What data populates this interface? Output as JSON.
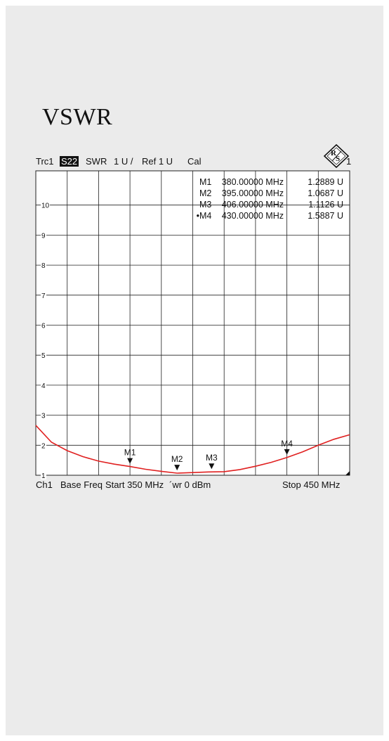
{
  "title": "VSWR",
  "header": {
    "trace": "Trc1",
    "param": "S22",
    "format": "SWR",
    "scale": "1 U /",
    "ref": "Ref 1 U",
    "cal": "Cal",
    "trace_number": "1"
  },
  "footer": {
    "channel": "Ch1",
    "base": "Base Freq",
    "start": "Start 350 MHz",
    "power": "´wr   0 dBm",
    "stop": "Stop  450 MHz"
  },
  "colors": {
    "trace": "#e02020",
    "grid": "#222222",
    "panel": "#ebebeb"
  },
  "chart_data": {
    "type": "line",
    "xlim": [
      350,
      450
    ],
    "ylim": [
      1,
      11
    ],
    "x_unit": "MHz",
    "y_unit": "U",
    "y_ticks": [
      "1",
      "2",
      "3",
      "4",
      "5",
      "6",
      "7",
      "8",
      "9",
      "10"
    ],
    "grid": true,
    "series": [
      {
        "x": [
          350,
          355,
          360,
          365,
          370,
          375,
          380,
          385,
          390,
          395,
          400,
          405,
          410,
          415,
          420,
          425,
          430,
          435,
          440,
          445,
          450
        ],
        "y": [
          2.66,
          2.1,
          1.82,
          1.62,
          1.47,
          1.37,
          1.29,
          1.2,
          1.13,
          1.07,
          1.09,
          1.11,
          1.12,
          1.19,
          1.3,
          1.43,
          1.59,
          1.78,
          2.0,
          2.2,
          2.35
        ]
      }
    ],
    "markers": [
      {
        "label": "M1",
        "freq": "380.00000 MHz",
        "value": "1.2889 U",
        "x": 380,
        "y": 1.2889,
        "active": false
      },
      {
        "label": "M2",
        "freq": "395.00000 MHz",
        "value": "1.0687 U",
        "x": 395,
        "y": 1.0687,
        "active": false
      },
      {
        "label": "M3",
        "freq": "406.00000 MHz",
        "value": "1.1126 U",
        "x": 406,
        "y": 1.1126,
        "active": false
      },
      {
        "label": "M4",
        "freq": "430.00000 MHz",
        "value": "1.5887 U",
        "x": 430,
        "y": 1.5887,
        "active": true
      }
    ]
  }
}
